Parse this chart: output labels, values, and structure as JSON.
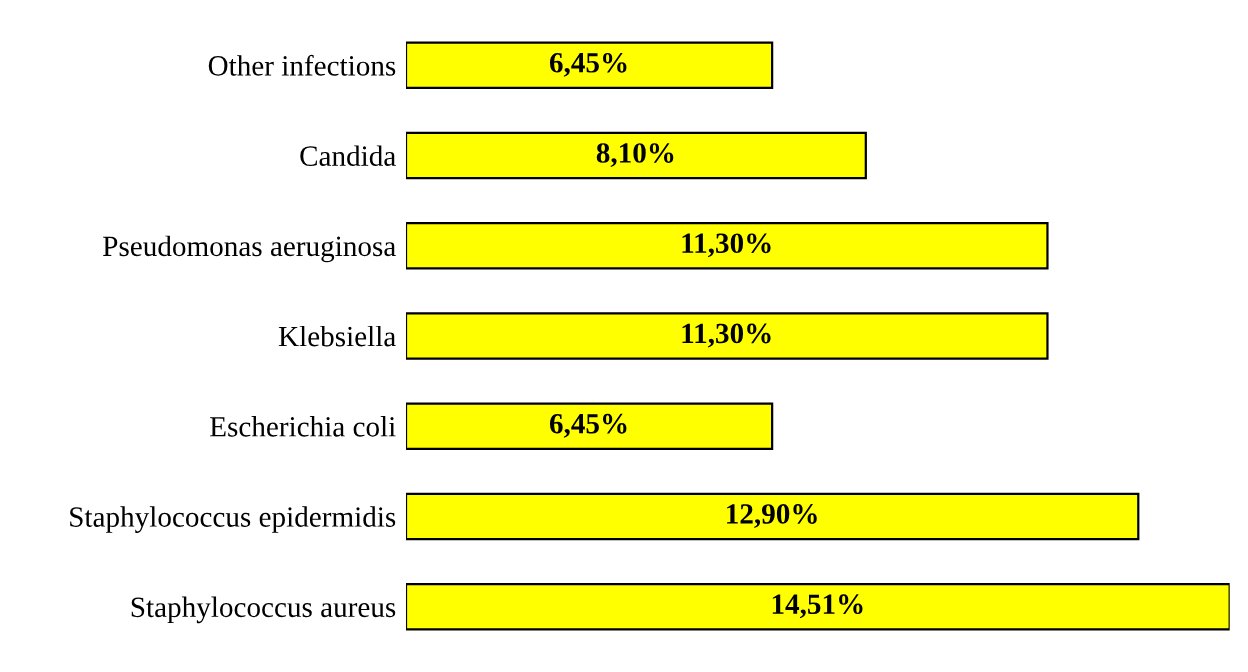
{
  "chart_data": {
    "type": "bar",
    "orientation": "horizontal",
    "categories": [
      "Other infections",
      "Candida",
      "Pseudomonas aeruginosa",
      "Klebsiella",
      "Escherichia coli",
      "Staphylococcus epidermidis",
      "Staphylococcus aureus"
    ],
    "values": [
      6.45,
      8.1,
      11.3,
      11.3,
      6.45,
      12.9,
      14.51
    ],
    "value_labels": [
      "6,45%",
      "8,10%",
      "11,30%",
      "11,30%",
      "6,45%",
      "12,90%",
      "14,51%"
    ],
    "color": "#ffff00",
    "grid": false,
    "tick_labels": "y"
  }
}
